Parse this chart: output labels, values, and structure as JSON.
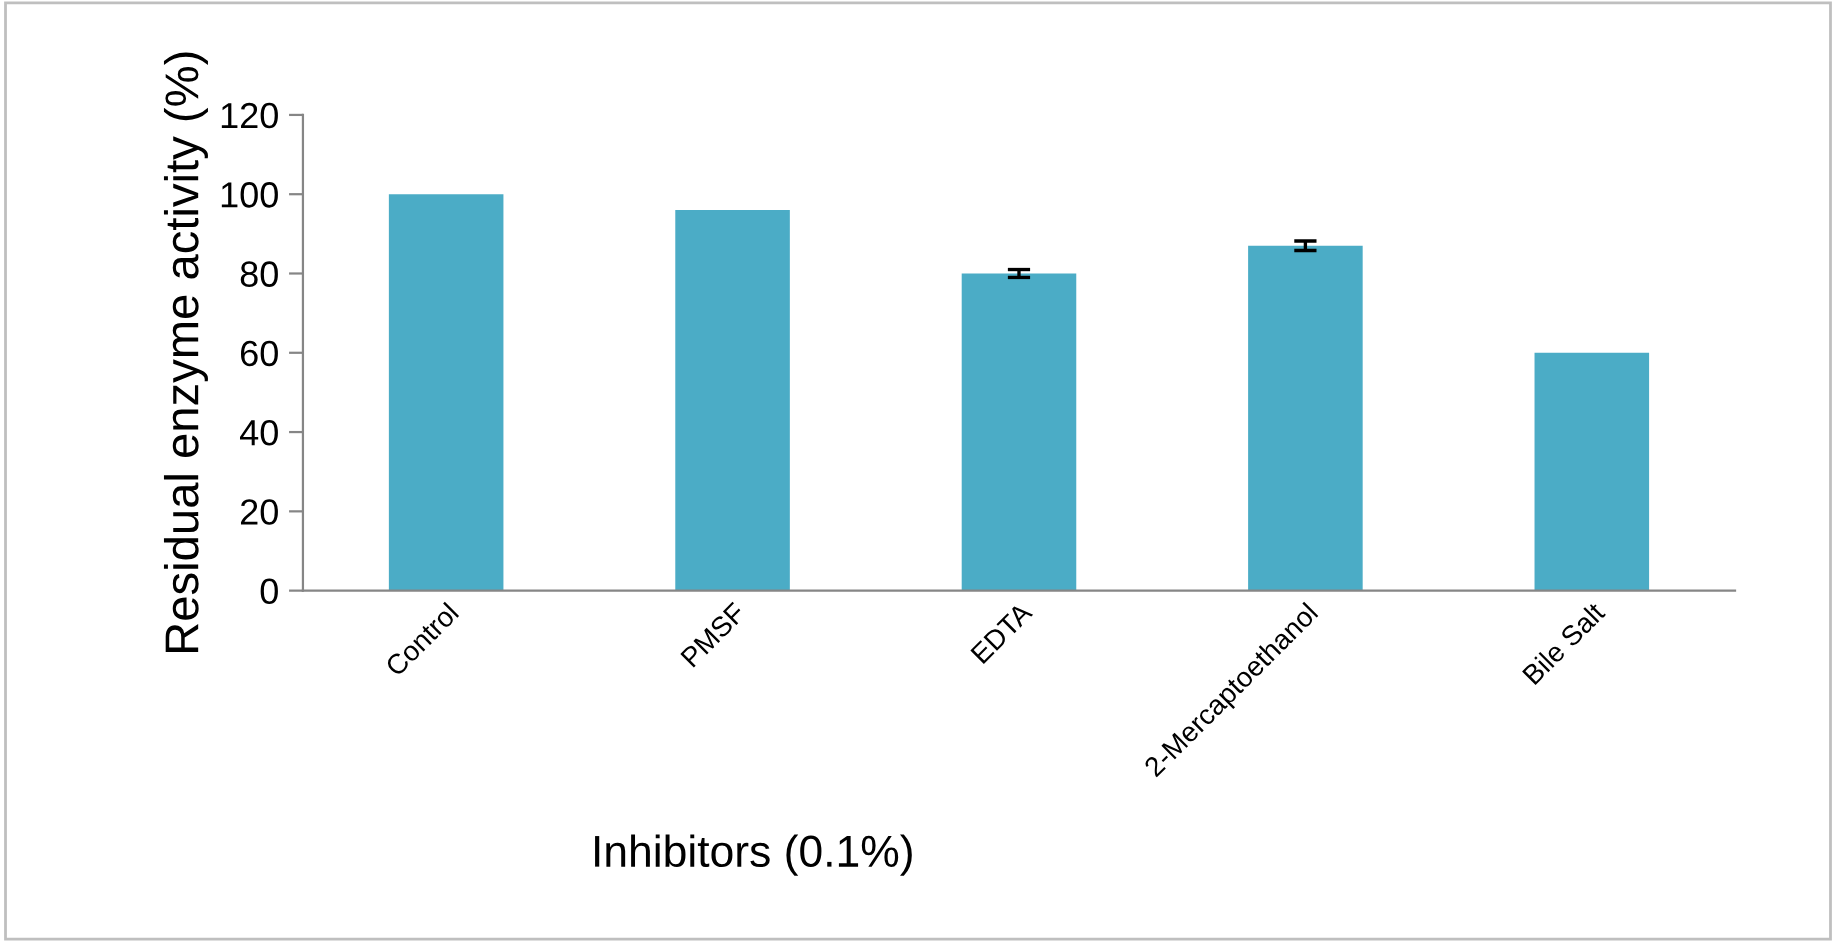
{
  "chart_data": {
    "type": "bar",
    "xlabel": "Inhibitors (0.1%)",
    "ylabel": "Residual enzyme activity (%)",
    "categories": [
      "Control",
      "PMSF",
      "EDTA",
      "2-Mercaptoethanol",
      "Bile Salt"
    ],
    "values": [
      100,
      96,
      80,
      87,
      60
    ],
    "errors": [
      null,
      null,
      1,
      1.2,
      null
    ],
    "color": "#4bacc6",
    "ylim": [
      0,
      120
    ],
    "yticks": [
      0,
      20,
      40,
      60,
      80,
      100,
      120
    ],
    "grid": false,
    "legend": false
  }
}
